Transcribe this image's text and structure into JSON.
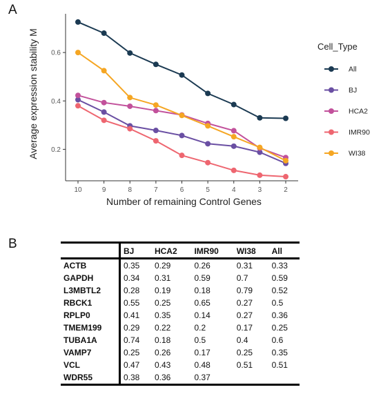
{
  "panel_a_label": "A",
  "panel_b_label": "B",
  "chart_data": {
    "type": "line",
    "xlabel": "Number of remaining Control Genes",
    "ylabel": "Average expression stability M",
    "categories": [
      "10",
      "9",
      "8",
      "7",
      "6",
      "5",
      "4",
      "3",
      "2"
    ],
    "yticks": [
      "0.2",
      "0.4",
      "0.6"
    ],
    "ylim": [
      0.07,
      0.76
    ],
    "legend": {
      "title": "Cell_Type",
      "placement": "right"
    },
    "series": [
      {
        "name": "All",
        "color": "#1b3a52",
        "values": [
          0.726,
          0.68,
          0.598,
          0.551,
          0.507,
          0.431,
          0.385,
          0.33,
          0.328
        ]
      },
      {
        "name": "BJ",
        "color": "#6a4fa3",
        "values": [
          0.405,
          0.354,
          0.297,
          0.278,
          0.257,
          0.223,
          0.213,
          0.188,
          0.142
        ]
      },
      {
        "name": "HCA2",
        "color": "#c2519b",
        "values": [
          0.423,
          0.393,
          0.378,
          0.36,
          0.342,
          0.307,
          0.277,
          0.205,
          0.166
        ]
      },
      {
        "name": "IMR90",
        "color": "#ee6670",
        "values": [
          0.38,
          0.32,
          0.285,
          0.235,
          0.175,
          0.145,
          0.113,
          0.093,
          0.087
        ]
      },
      {
        "name": "WI38",
        "color": "#f5a623",
        "values": [
          0.6,
          0.525,
          0.414,
          0.383,
          0.34,
          0.297,
          0.252,
          0.208,
          0.153
        ]
      }
    ]
  },
  "table": {
    "columns": [
      "BJ",
      "HCA2",
      "IMR90",
      "WI38",
      "All"
    ],
    "rows": [
      {
        "gene": "ACTB",
        "values": [
          "0.35",
          "0.29",
          "0.26",
          "0.31",
          "0.33"
        ]
      },
      {
        "gene": "GAPDH",
        "values": [
          "0.34",
          "0.31",
          "0.59",
          "0.7",
          "0.59"
        ]
      },
      {
        "gene": "L3MBTL2",
        "values": [
          "0.28",
          "0.19",
          "0.18",
          "0.79",
          "0.52"
        ]
      },
      {
        "gene": "RBCK1",
        "values": [
          "0.55",
          "0.25",
          "0.65",
          "0.27",
          "0.5"
        ]
      },
      {
        "gene": "RPLP0",
        "values": [
          "0.41",
          "0.35",
          "0.14",
          "0.27",
          "0.36"
        ]
      },
      {
        "gene": "TMEM199",
        "values": [
          "0.29",
          "0.22",
          "0.2",
          "0.17",
          "0.25"
        ]
      },
      {
        "gene": "TUBA1A",
        "values": [
          "0.74",
          "0.18",
          "0.5",
          "0.4",
          "0.6"
        ]
      },
      {
        "gene": "VAMP7",
        "values": [
          "0.25",
          "0.26",
          "0.17",
          "0.25",
          "0.35"
        ]
      },
      {
        "gene": "VCL",
        "values": [
          "0.47",
          "0.43",
          "0.48",
          "0.51",
          "0.51"
        ]
      },
      {
        "gene": "WDR55",
        "values": [
          "0.38",
          "0.36",
          "0.37",
          "",
          ""
        ]
      }
    ]
  }
}
